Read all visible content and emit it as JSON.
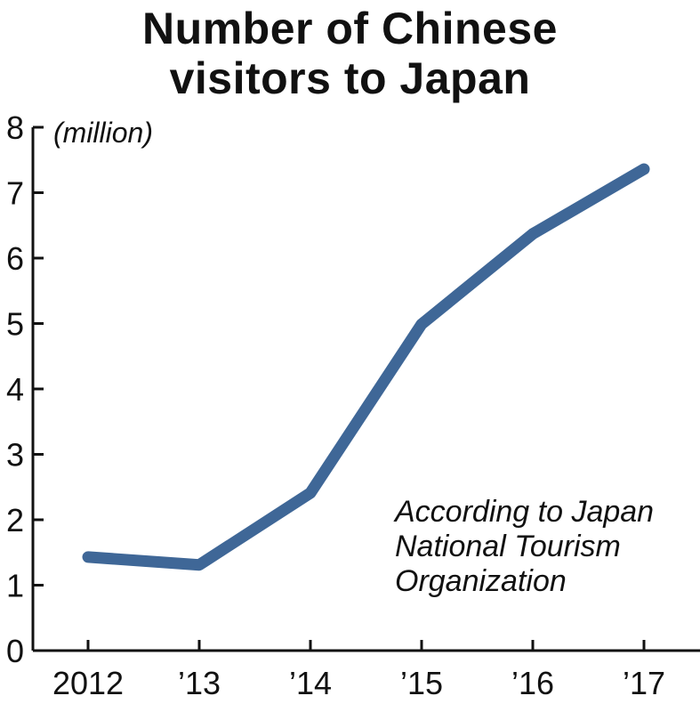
{
  "chart_data": {
    "type": "line",
    "title_lines": [
      "Number of Chinese",
      "visitors to Japan"
    ],
    "y_unit": "(million)",
    "categories": [
      "2012",
      "’13",
      "’14",
      "’15",
      "’16",
      "’17"
    ],
    "series": [
      {
        "values": [
          1.43,
          1.31,
          2.41,
          4.99,
          6.37,
          7.36
        ],
        "color": "#3f6797"
      }
    ],
    "ylim": [
      0,
      8
    ],
    "yticks": [
      0,
      1,
      2,
      3,
      4,
      5,
      6,
      7,
      8
    ],
    "grid": false,
    "annotation_lines": [
      "According to Japan",
      "National Tourism",
      "Organization"
    ]
  }
}
